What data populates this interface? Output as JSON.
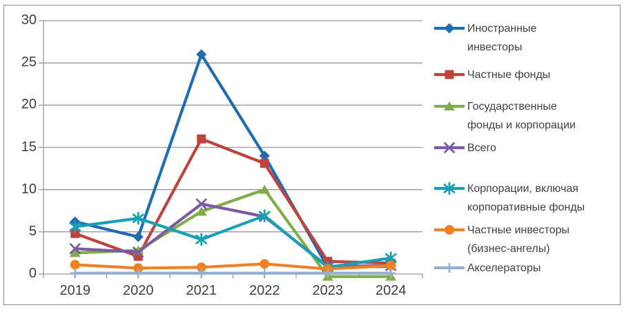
{
  "chart_data": {
    "type": "line",
    "title": "",
    "xlabel": "",
    "ylabel": "",
    "categories": [
      "2019",
      "2020",
      "2021",
      "2022",
      "2023",
      "2024"
    ],
    "yticks": [
      0,
      5,
      10,
      15,
      20,
      25,
      30
    ],
    "ylim": [
      0,
      30
    ],
    "grid": true,
    "legend_position": "right",
    "series": [
      {
        "name": "Иностранные инвесторы",
        "legend_lines": [
          "Иностранные",
          "инвесторы"
        ],
        "marker": "diamond",
        "color": "#1F6CB0",
        "values": [
          6.2,
          4.4,
          26.0,
          14.0,
          0.8,
          0.9
        ]
      },
      {
        "name": "Частные фонды",
        "legend_lines": [
          "Частные фонды"
        ],
        "marker": "square",
        "color": "#BF423D",
        "values": [
          4.8,
          2.1,
          16.0,
          13.1,
          1.5,
          1.3
        ]
      },
      {
        "name": "Государственные фонды и корпорации",
        "legend_lines": [
          "Государственные",
          "фонды и корпорации"
        ],
        "marker": "triangle",
        "color": "#7FAD47",
        "values": [
          2.5,
          2.8,
          7.4,
          10.0,
          -0.3,
          -0.3
        ]
      },
      {
        "name": "Всего",
        "legend_lines": [
          "Всего"
        ],
        "marker": "x",
        "color": "#7B5BA3",
        "values": [
          3.0,
          2.6,
          8.3,
          6.8,
          0.9,
          1.0
        ]
      },
      {
        "name": "Корпорации, включая корпоративные фонды",
        "legend_lines": [
          "Корпорации, включая",
          "корпоративные фонды"
        ],
        "marker": "asterisk",
        "color": "#18A0B4",
        "values": [
          5.6,
          6.6,
          4.1,
          6.9,
          0.8,
          1.9
        ]
      },
      {
        "name": "Частные инвесторы (бизнес-ангелы)",
        "legend_lines": [
          "Частные инвесторы",
          "(бизнес-ангелы)"
        ],
        "marker": "circle",
        "color": "#EF8122",
        "values": [
          1.1,
          0.7,
          0.8,
          1.2,
          0.6,
          1.0
        ]
      },
      {
        "name": "Акселераторы",
        "legend_lines": [
          "Акселераторы"
        ],
        "marker": "plus",
        "color": "#92B1D4",
        "values": [
          0.1,
          0.1,
          0.1,
          0.1,
          0.1,
          0.1
        ]
      }
    ],
    "colors": {
      "grid": "#989898",
      "axis": "#989898",
      "axis_text": "#3F3F3F",
      "frame_border": "#8A8A8A",
      "background": "#FFFFFF"
    }
  }
}
